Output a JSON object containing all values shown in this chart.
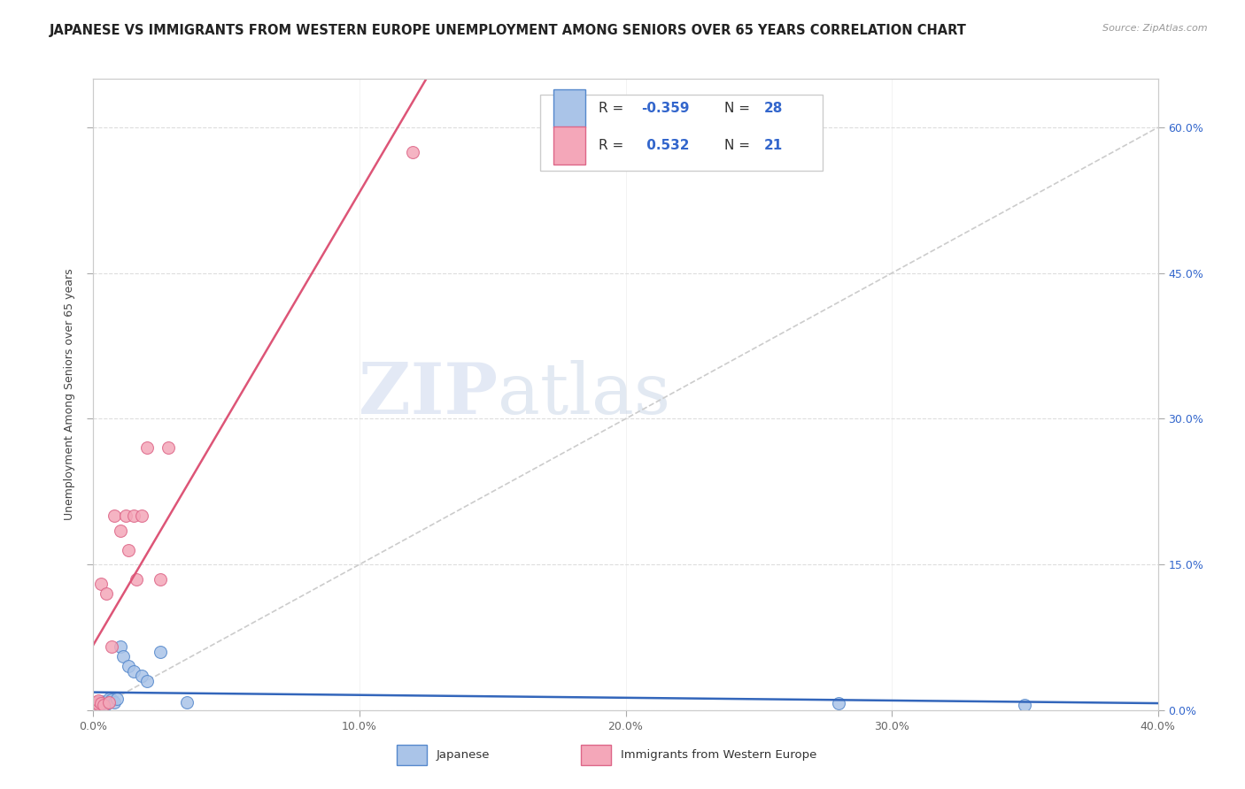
{
  "title": "JAPANESE VS IMMIGRANTS FROM WESTERN EUROPE UNEMPLOYMENT AMONG SENIORS OVER 65 YEARS CORRELATION CHART",
  "source": "Source: ZipAtlas.com",
  "ylabel": "Unemployment Among Seniors over 65 years",
  "xlim": [
    0.0,
    0.4
  ],
  "ylim": [
    0.0,
    0.65
  ],
  "xticks": [
    0.0,
    0.1,
    0.2,
    0.3,
    0.4
  ],
  "xticklabels": [
    "0.0%",
    "10.0%",
    "20.0%",
    "30.0%",
    "40.0%"
  ],
  "right_yticks": [
    0.0,
    0.15,
    0.3,
    0.45,
    0.6
  ],
  "right_yticklabels": [
    "0.0%",
    "15.0%",
    "30.0%",
    "45.0%",
    "60.0%"
  ],
  "japanese_color": "#aac4e8",
  "western_europe_color": "#f4a7b9",
  "japanese_edge_color": "#5588cc",
  "western_europe_edge_color": "#dd6688",
  "japanese_line_color": "#3366bb",
  "western_europe_line_color": "#dd5577",
  "ref_line_color": "#cccccc",
  "legend_label1": "Japanese",
  "legend_label2": "Immigrants from Western Europe",
  "japanese_x": [
    0.001,
    0.001,
    0.001,
    0.001,
    0.002,
    0.002,
    0.002,
    0.003,
    0.003,
    0.003,
    0.004,
    0.005,
    0.005,
    0.006,
    0.006,
    0.007,
    0.008,
    0.009,
    0.01,
    0.011,
    0.013,
    0.015,
    0.018,
    0.02,
    0.025,
    0.035,
    0.28,
    0.35
  ],
  "japanese_y": [
    0.005,
    0.006,
    0.007,
    0.008,
    0.005,
    0.006,
    0.008,
    0.006,
    0.007,
    0.009,
    0.007,
    0.006,
    0.008,
    0.01,
    0.012,
    0.011,
    0.008,
    0.012,
    0.065,
    0.055,
    0.045,
    0.04,
    0.035,
    0.03,
    0.06,
    0.008,
    0.007,
    0.005
  ],
  "western_x": [
    0.001,
    0.001,
    0.002,
    0.002,
    0.003,
    0.003,
    0.004,
    0.005,
    0.006,
    0.007,
    0.008,
    0.01,
    0.012,
    0.013,
    0.015,
    0.016,
    0.018,
    0.02,
    0.025,
    0.028,
    0.12
  ],
  "western_y": [
    0.005,
    0.008,
    0.006,
    0.01,
    0.007,
    0.13,
    0.005,
    0.12,
    0.008,
    0.065,
    0.2,
    0.185,
    0.2,
    0.165,
    0.2,
    0.135,
    0.2,
    0.27,
    0.135,
    0.27,
    0.575
  ],
  "marker_size": 100,
  "title_fontsize": 10.5,
  "tick_fontsize": 9,
  "ylabel_fontsize": 9
}
